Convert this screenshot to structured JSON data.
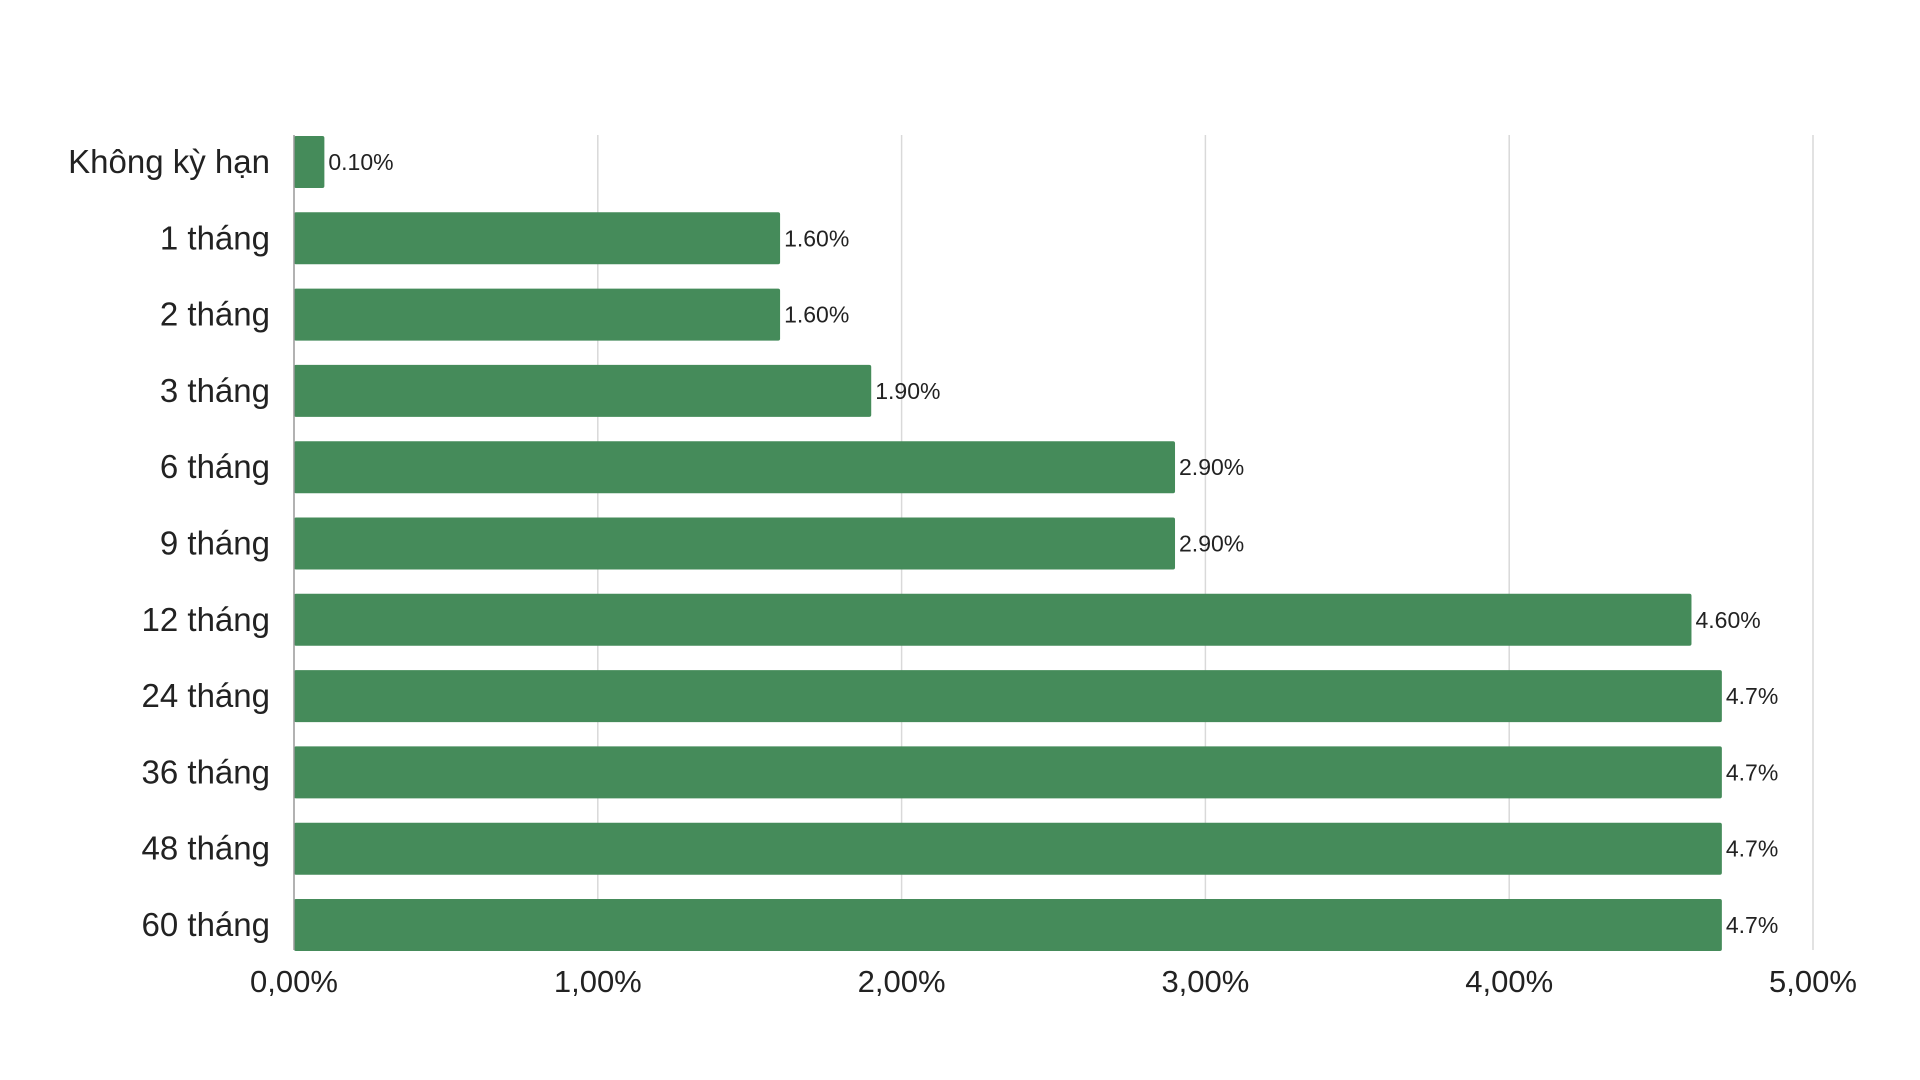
{
  "chart_data": {
    "type": "bar",
    "orientation": "horizontal",
    "categories": [
      "Không kỳ hạn",
      "1 tháng",
      "2 tháng",
      "3 tháng",
      "6 tháng",
      "9 tháng",
      "12 tháng",
      "24 tháng",
      "36 tháng",
      "48 tháng",
      "60 tháng"
    ],
    "values": [
      0.1,
      1.6,
      1.6,
      1.9,
      2.9,
      2.9,
      4.6,
      4.7,
      4.7,
      4.7,
      4.7
    ],
    "data_labels": [
      "0.10%",
      "1.60%",
      "1.60%",
      "1.90%",
      "2.90%",
      "2.90%",
      "4.60%",
      "4.7%",
      "4.7%",
      "4.7%",
      "4.7%"
    ],
    "x_ticks": [
      0,
      1,
      2,
      3,
      4,
      5
    ],
    "x_tick_labels": [
      "0,00%",
      "1,00%",
      "2,00%",
      "3,00%",
      "4,00%",
      "5,00%"
    ],
    "xlim": [
      0,
      5
    ],
    "grid": "vertical",
    "legend": "none",
    "colors": {
      "bar": "#458b5a",
      "grid": "#d9d9d9",
      "axis": "#999999",
      "text": "#222222"
    }
  }
}
